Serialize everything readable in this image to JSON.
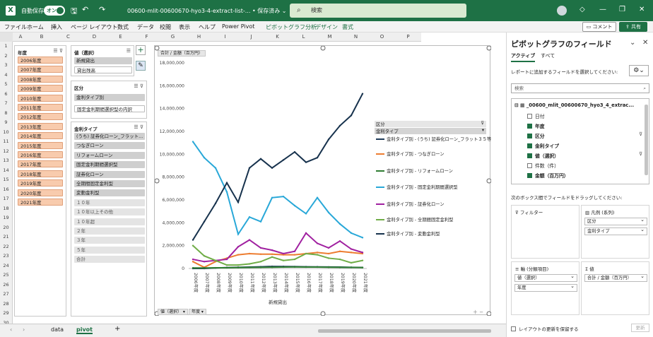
{
  "titlebar": {
    "app_logo": "X",
    "autosave_label": "自動保存",
    "autosave_state": "オン",
    "filename": "00600-mlit-00600670-hyo3-4-extract-list-...",
    "save_status": "• 保存済み ⌄",
    "search_placeholder": "検索"
  },
  "ribbon": {
    "tabs": [
      "ファイル",
      "ホーム",
      "挿入",
      "ページ レイアウト",
      "数式",
      "データ",
      "校閲",
      "表示",
      "ヘルプ",
      "Power Pivot",
      "ピボットグラフ分析",
      "デザイン",
      "書式"
    ],
    "comment_label": "コメント",
    "share_label": "共有"
  },
  "grid": {
    "columns": [
      "A",
      "B",
      "C",
      "D",
      "E",
      "F",
      "G",
      "H",
      "I",
      "J",
      "K",
      "L",
      "M",
      "N",
      "O",
      "P"
    ],
    "rows": [
      "1",
      "2",
      "3",
      "4",
      "5",
      "6",
      "7",
      "8",
      "9",
      "10",
      "11",
      "12",
      "13",
      "14",
      "15",
      "16",
      "17",
      "18",
      "19",
      "20",
      "21",
      "22",
      "23",
      "24",
      "25",
      "26",
      "27",
      "28",
      "29",
      "30",
      "31"
    ]
  },
  "slicers": {
    "year": {
      "title": "年度",
      "items": [
        "2006年度",
        "2007年度",
        "2008年度",
        "2009年度",
        "2010年度",
        "2011年度",
        "2012年度",
        "2013年度",
        "2014年度",
        "2015年度",
        "2016年度",
        "2017年度",
        "2018年度",
        "2019年度",
        "2020年度",
        "2021年度"
      ]
    },
    "value_select": {
      "title": "値（選択）",
      "items": [
        "新規貸出",
        "貸出残高"
      ]
    },
    "category": {
      "title": "区分",
      "items": [
        "金利タイプ別",
        "固定金利期間選択型の内訳"
      ]
    },
    "rate_type": {
      "title": "金利タイプ",
      "items_selected": [
        "(うち) 証券化ローン_フラット...",
        "つなぎローン",
        "リフォームローン",
        "固定金利期間選択型",
        "証券化ローン",
        "全期間固定金利型",
        "変動金利型"
      ],
      "items_unselected": [
        "１０年",
        "１０年以上その他",
        "１０年超",
        "２年",
        "３年",
        "５年",
        "合計"
      ]
    }
  },
  "chart_labels": {
    "value_field": "合計 / 金額（百万円）",
    "x_axis_title": "新規貸出",
    "legend_header": "区分",
    "legend_subheader": "金利タイプ",
    "filter_btn1": "値（選択）",
    "filter_btn2": "年度"
  },
  "chart_data": {
    "type": "line",
    "x": [
      "2006年度",
      "2007年度",
      "2008年度",
      "2009年度",
      "2010年度",
      "2011年度",
      "2012年度",
      "2013年度",
      "2014年度",
      "2015年度",
      "2016年度",
      "2017年度",
      "2018年度",
      "2019年度",
      "2020年度",
      "2021年度"
    ],
    "ylim": [
      0,
      18000000
    ],
    "yticks": [
      "0",
      "2,000,000",
      "4,000,000",
      "6,000,000",
      "8,000,000",
      "10,000,000",
      "12,000,000",
      "14,000,000",
      "16,000,000",
      "18,000,000"
    ],
    "series": [
      {
        "name": "金利タイプ別 - (うち) 証券化ローン_フラット３５等",
        "color": "#1f3c5a",
        "values": [
          0,
          0,
          50000,
          80000,
          100000,
          120000,
          150000,
          180000,
          170000,
          160000,
          150000,
          140000,
          130000,
          120000,
          100000,
          90000
        ]
      },
      {
        "name": "金利タイプ別 - つなぎローン",
        "color": "#ed7d31",
        "values": [
          600000,
          100000,
          600000,
          900000,
          1200000,
          1300000,
          1250000,
          1250000,
          1200000,
          1200000,
          1300000,
          1400000,
          1300000,
          1500000,
          1400000,
          1300000
        ]
      },
      {
        "name": "金利タイプ別 - リフォームローン",
        "color": "#2e7d32",
        "values": [
          50000,
          50000,
          60000,
          60000,
          80000,
          90000,
          100000,
          110000,
          120000,
          130000,
          120000,
          120000,
          110000,
          100000,
          90000,
          80000
        ]
      },
      {
        "name": "金利タイプ別 - 固定金利期間選択型",
        "color": "#29a8d8",
        "values": [
          11100000,
          9700000,
          8800000,
          6700000,
          3000000,
          4500000,
          4100000,
          6200000,
          6300000,
          5500000,
          4800000,
          6200000,
          4900000,
          3900000,
          3100000,
          2700000
        ]
      },
      {
        "name": "金利タイプ別 - 証券化ローン",
        "color": "#a020a0",
        "values": [
          800000,
          600000,
          700000,
          800000,
          1900000,
          2500000,
          1800000,
          1600000,
          1300000,
          1500000,
          3100000,
          2200000,
          1800000,
          2400000,
          1700000,
          1400000
        ]
      },
      {
        "name": "金利タイプ別 - 全期間固定金利型",
        "color": "#70ad47",
        "values": [
          2000000,
          1100000,
          700000,
          300000,
          300000,
          400000,
          600000,
          1000000,
          700000,
          800000,
          1300000,
          1200000,
          900000,
          800000,
          500000,
          700000
        ]
      },
      {
        "name": "金利タイプ別 - 変動金利型",
        "color": "#17324d",
        "values": [
          2500000,
          4100000,
          5700000,
          7500000,
          5800000,
          8800000,
          9600000,
          8800000,
          9500000,
          10200000,
          9300000,
          9700000,
          11300000,
          12500000,
          13400000,
          15300000
        ]
      }
    ]
  },
  "pane": {
    "title": "ピボットグラフのフィールド",
    "tabs": [
      "アクティブ",
      "すべて"
    ],
    "note": "レポートに追加するフィールドを選択してください:",
    "search_placeholder": "検索",
    "table_name": "_00600_mlit_00600670_hyo3_4_extrac...",
    "fields": [
      "日付",
      "年度",
      "区分",
      "金利タイプ",
      "値（選択）",
      "件数（件）",
      "金額（百万円）"
    ],
    "drag_note": "次のボックス間でフィールドをドラッグしてください:",
    "filter_title": "フィルター",
    "legend_title": "凡例 (系列)",
    "legend_items": [
      "区分",
      "金利タイプ"
    ],
    "axis_title": "軸 (分類項目)",
    "axis_items": [
      "値（選択）",
      "年度"
    ],
    "values_title": "値",
    "values_items": [
      "合計 / 金額（百万円）"
    ],
    "defer_label": "レイアウトの更新を保留する",
    "update_label": "更新"
  },
  "sheets": {
    "tabs": [
      "data",
      "pivot"
    ],
    "add": "+"
  }
}
